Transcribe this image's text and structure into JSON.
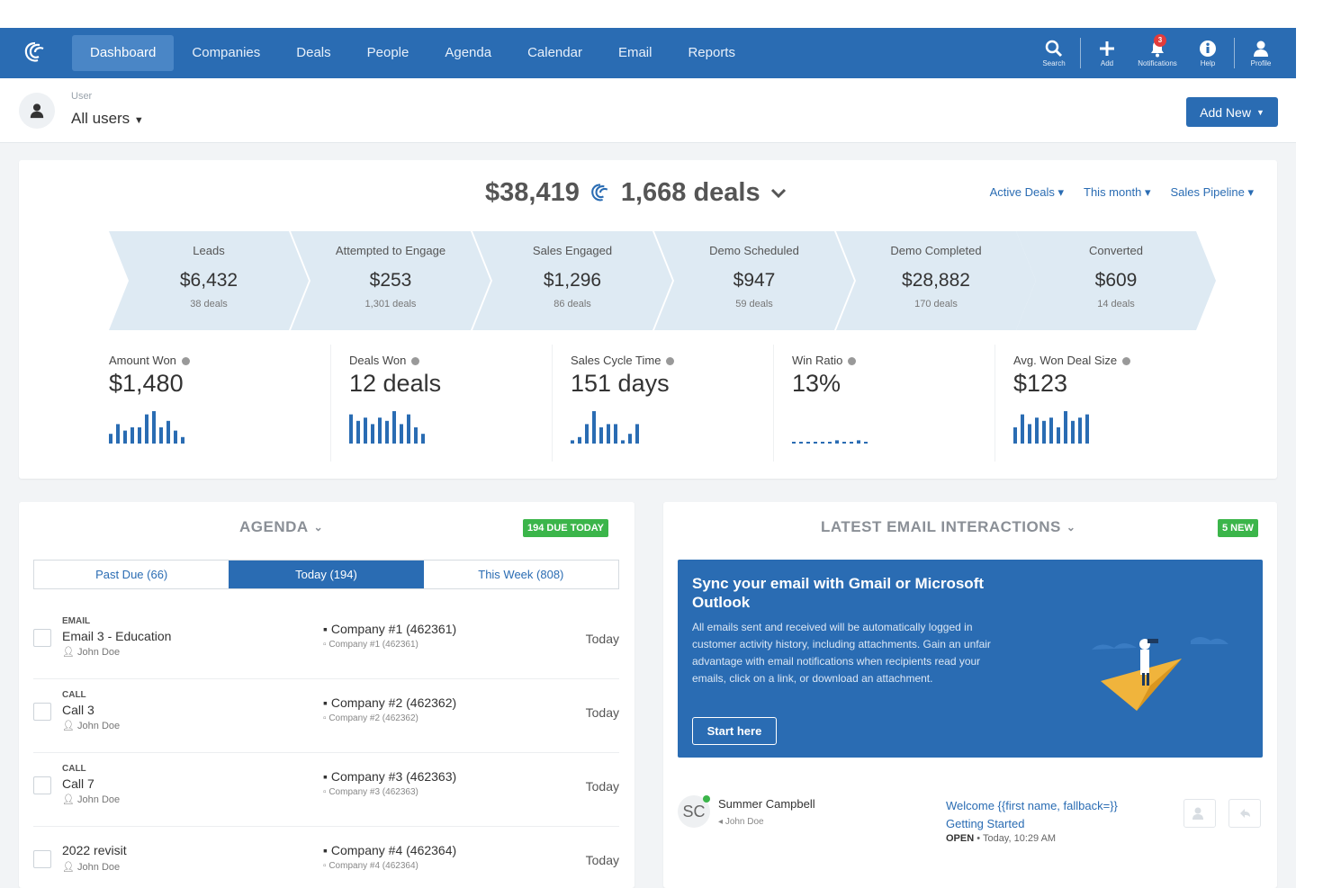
{
  "nav": {
    "items": [
      "Dashboard",
      "Companies",
      "Deals",
      "People",
      "Agenda",
      "Calendar",
      "Email",
      "Reports"
    ],
    "active": "Dashboard",
    "tools": {
      "search": "Search",
      "add": "Add",
      "notifications": "Notifications",
      "notification_count": "3",
      "help": "Help",
      "profile": "Profile"
    }
  },
  "user_filter": {
    "label": "User",
    "value": "All users"
  },
  "add_new": "Add New",
  "summary": {
    "total_amount": "$38,419",
    "total_deals": "1,668 deals",
    "filters": [
      "Active Deals",
      "This month",
      "Sales Pipeline"
    ]
  },
  "funnel": [
    {
      "name": "Leads",
      "amount": "$6,432",
      "deals": "38 deals"
    },
    {
      "name": "Attempted to Engage",
      "amount": "$253",
      "deals": "1,301 deals"
    },
    {
      "name": "Sales Engaged",
      "amount": "$1,296",
      "deals": "86 deals"
    },
    {
      "name": "Demo Scheduled",
      "amount": "$947",
      "deals": "59 deals"
    },
    {
      "name": "Demo Completed",
      "amount": "$28,882",
      "deals": "170 deals"
    },
    {
      "name": "Converted",
      "amount": "$609",
      "deals": "14 deals"
    }
  ],
  "metrics": [
    {
      "name": "Amount Won",
      "value": "$1,480",
      "spark": [
        0.3,
        0.6,
        0.4,
        0.5,
        0.5,
        0.9,
        1.0,
        0.5,
        0.7,
        0.4,
        0.2
      ]
    },
    {
      "name": "Deals Won",
      "value": "12 deals",
      "spark": [
        0.9,
        0.7,
        0.8,
        0.6,
        0.8,
        0.7,
        1.0,
        0.6,
        0.9,
        0.5,
        0.3
      ]
    },
    {
      "name": "Sales Cycle Time",
      "value": "151 days",
      "spark": [
        0.1,
        0.2,
        0.6,
        1.0,
        0.5,
        0.6,
        0.6,
        0.1,
        0.3,
        0.6
      ]
    },
    {
      "name": "Win Ratio",
      "value": "13%",
      "spark": [
        0.05,
        0.05,
        0.05,
        0.05,
        0.05,
        0.05,
        0.1,
        0.05,
        0.05,
        0.1,
        0.05
      ]
    },
    {
      "name": "Avg. Won Deal Size",
      "value": "$123",
      "spark": [
        0.5,
        0.9,
        0.6,
        0.8,
        0.7,
        0.8,
        0.5,
        1.0,
        0.7,
        0.8,
        0.9
      ]
    }
  ],
  "agenda": {
    "title": "AGENDA",
    "badge": "194 DUE TODAY",
    "tabs": [
      "Past Due (66)",
      "Today (194)",
      "This Week (808)"
    ],
    "active_tab": 1,
    "rows": [
      {
        "type": "EMAIL",
        "title": "Email 3 - Education",
        "owner": "John Doe",
        "company": "Company #1 (462361)",
        "company_sub": "Company #1 (462361)",
        "when": "Today"
      },
      {
        "type": "CALL",
        "title": "Call 3",
        "owner": "John Doe",
        "company": "Company #2 (462362)",
        "company_sub": "Company #2 (462362)",
        "when": "Today"
      },
      {
        "type": "CALL",
        "title": "Call 7",
        "owner": "John Doe",
        "company": "Company #3 (462363)",
        "company_sub": "Company #3 (462363)",
        "when": "Today"
      },
      {
        "type": "",
        "title": "2022 revisit",
        "owner": "John Doe",
        "company": "Company #4 (462364)",
        "company_sub": "Company #4 (462364)",
        "when": "Today"
      }
    ]
  },
  "emails": {
    "title": "LATEST EMAIL INTERACTIONS",
    "badge": "5 NEW",
    "banner": {
      "title": "Sync your email with Gmail or Microsoft Outlook",
      "body": "All emails sent and received will be automatically logged in customer activity history, including attachments. Gain an unfair advantage with email notifications when recipients read your emails, click on a link, or download an attachment.",
      "button": "Start here"
    },
    "row": {
      "initials": "SC",
      "name": "Summer Campbell",
      "owner": "John Doe",
      "subject": "Welcome {{first name, fallback=}} Getting Started",
      "status": "OPEN",
      "time": "Today, 10:29 AM"
    }
  },
  "colors": {
    "brand": "#2a6cb3",
    "funnel": "#deeaf3",
    "success": "#3bb54a",
    "spark": "#2a6cb3"
  }
}
